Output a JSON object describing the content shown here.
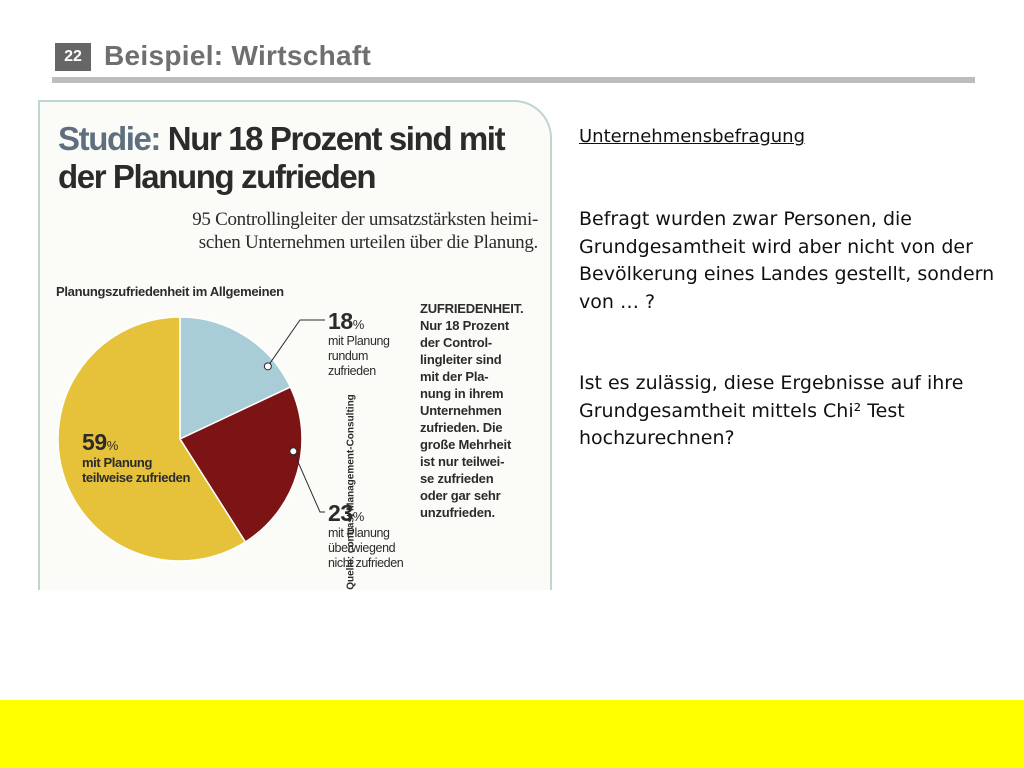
{
  "slide": {
    "number": "22",
    "title": "Beispiel: Wirtschaft"
  },
  "clipping": {
    "headline_prefix": "Studie:",
    "headline_line1_rest": " Nur 18 Prozent sind mit",
    "headline_line2": "der Planung zufrieden",
    "subheadline_line1": "95 Controllingleiter der umsatzstärksten heimi-",
    "subheadline_line2": "schen Unternehmen urteilen über die Planung.",
    "chart_label": "Planungszufriedenheit im Allgemeinen",
    "source": "Quelle: contrast Management-Consulting",
    "sidebar_text": "ZUFRIEDENHEIT.\nNur 18 Prozent\nder Control-\nlingleiter sind\nmit der Pla-\nnung in ihrem\nUnternehmen\nzufrieden. Die\ngroße Mehrheit\nist nur teilwei-\nse zufrieden\noder gar sehr\nunzufrieden."
  },
  "chart_data": {
    "type": "pie",
    "title": "Planungszufriedenheit im Allgemeinen",
    "unit": "%",
    "slices": [
      {
        "value": 18,
        "value_label": "18",
        "label": "mit Planung\nrundum\nzufrieden",
        "color": "#a9cdd6"
      },
      {
        "value": 23,
        "value_label": "23",
        "label": "mit Planung\nüberwiegend\nnicht zufrieden",
        "color": "#7c1416"
      },
      {
        "value": 59,
        "value_label": "59",
        "label": "mit Planung\nteilweise zufrieden",
        "color": "#e6c23a"
      }
    ]
  },
  "right_panel": {
    "heading": "Unternehmensbefragung",
    "paragraph1": "Befragt wurden zwar Personen, die Grundgesamtheit wird aber nicht von der Bevölkerung eines Landes gestellt, sondern von … ?",
    "paragraph2": "Ist es zulässig, diese Ergebnisse auf ihre Grundgesamtheit mittels Chi² Test hochzurechnen?"
  },
  "colors": {
    "footer_bar": "#ffff00",
    "title_text": "#6f6f6f",
    "slide_number_bg": "#666666"
  }
}
